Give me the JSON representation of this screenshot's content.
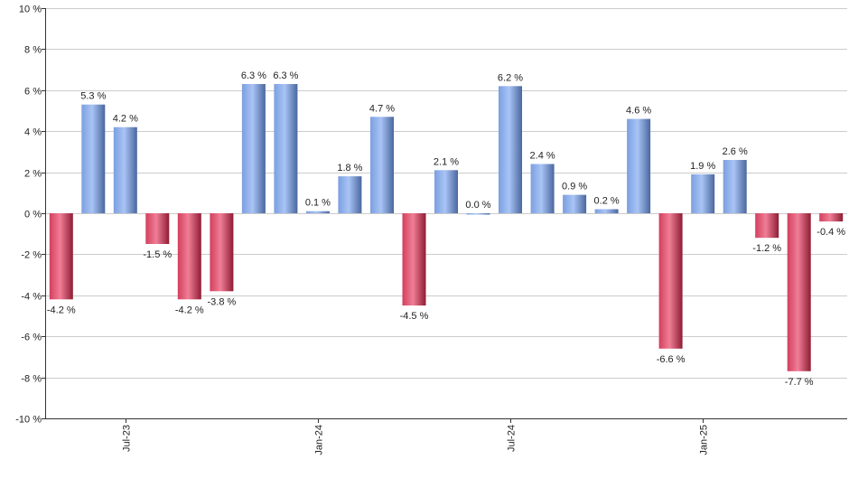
{
  "chart_data": {
    "type": "bar",
    "title": "",
    "xlabel": "",
    "ylabel": "",
    "ylim": [
      -10,
      10
    ],
    "y_ticks": [
      -10,
      -8,
      -6,
      -4,
      -2,
      0,
      2,
      4,
      6,
      8,
      10
    ],
    "y_tick_labels": [
      "-10 %",
      "-8 %",
      "-6 %",
      "-4 %",
      "-2 %",
      "0 %",
      "2 %",
      "4 %",
      "6 %",
      "8 %",
      "10 %"
    ],
    "grid": true,
    "x_tick_labels": [
      {
        "label": "Jul-23",
        "index": 2
      },
      {
        "label": "Jan-24",
        "index": 8
      },
      {
        "label": "Jul-24",
        "index": 14
      },
      {
        "label": "Jan-25",
        "index": 20
      }
    ],
    "values": [
      -4.2,
      5.3,
      4.2,
      -1.5,
      -4.2,
      -3.8,
      6.3,
      6.3,
      0.1,
      1.8,
      4.7,
      -4.5,
      2.1,
      0.0,
      6.2,
      2.4,
      0.9,
      0.2,
      4.6,
      -6.6,
      1.9,
      2.6,
      -1.2,
      -7.7,
      -0.4
    ],
    "value_labels": [
      "-4.2 %",
      "5.3 %",
      "4.2 %",
      "-1.5 %",
      "-4.2 %",
      "-3.8 %",
      "6.3 %",
      "6.3 %",
      "0.1 %",
      "1.8 %",
      "4.7 %",
      "-4.5 %",
      "2.1 %",
      "0.0 %",
      "6.2 %",
      "2.4 %",
      "0.9 %",
      "0.2 %",
      "4.6 %",
      "-6.6 %",
      "1.9 %",
      "2.6 %",
      "-1.2 %",
      "-7.7 %",
      "-0.4 %"
    ],
    "colors": {
      "positive_light": "#a9c4f5",
      "positive_mid": "#7b9fe0",
      "positive_dark": "#4a679f",
      "negative_light": "#f07e96",
      "negative_mid": "#d33f5e",
      "negative_dark": "#8e1c33",
      "grid": "#cccccc",
      "axis": "#333333"
    }
  }
}
